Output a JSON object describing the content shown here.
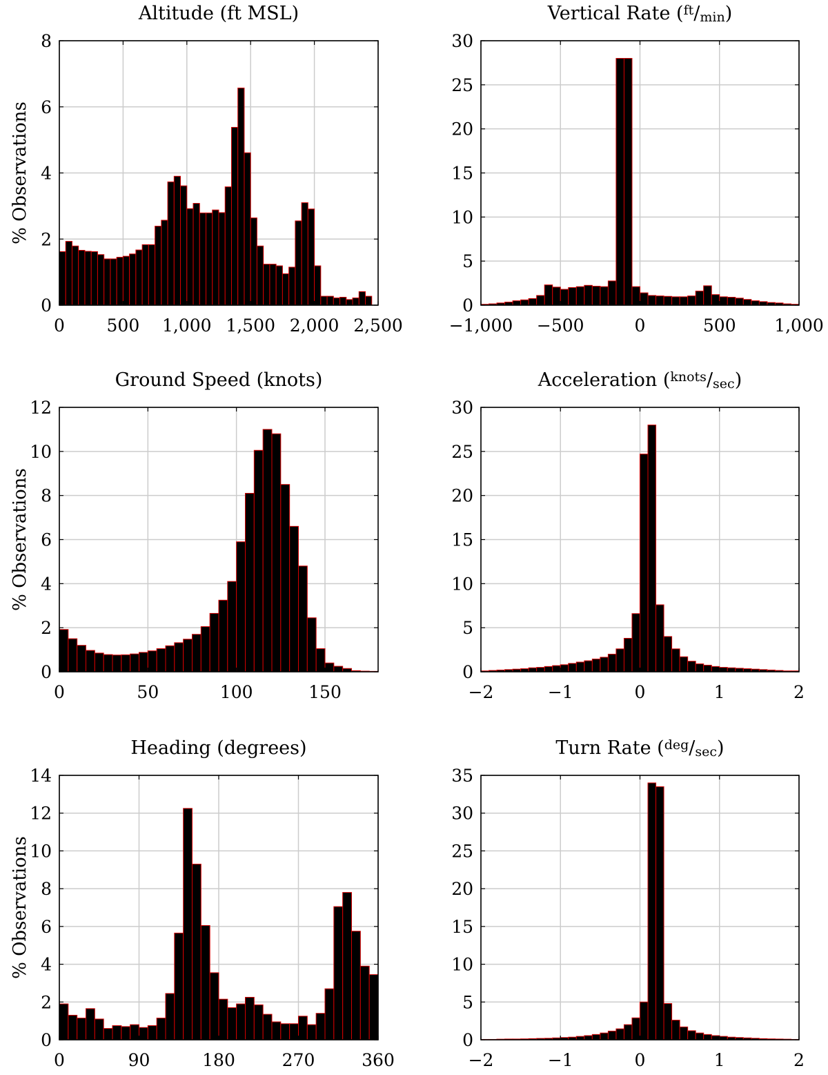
{
  "figure": {
    "ylabel": "% Observations",
    "bar_color": "#000000",
    "edge_color": "#d40000",
    "grid_color": "#cccccc"
  },
  "chart_data": [
    {
      "id": "altitude",
      "type": "bar",
      "title": "Altitude (ft MSL)",
      "ylabel": "% Observations",
      "xlim": [
        0,
        2500
      ],
      "ylim": [
        0,
        8
      ],
      "xticks": [
        0,
        500,
        1000,
        1500,
        2000,
        2500
      ],
      "xtick_labels": [
        "0",
        "500",
        "1,000",
        "1,500",
        "2,000",
        "2,500"
      ],
      "yticks": [
        0,
        2,
        4,
        6,
        8
      ],
      "ytick_labels": [
        "0",
        "2",
        "4",
        "6",
        "8"
      ],
      "bin_start": 0,
      "bin_width": 50,
      "values": [
        1.62,
        1.93,
        1.79,
        1.66,
        1.63,
        1.62,
        1.53,
        1.4,
        1.4,
        1.45,
        1.48,
        1.55,
        1.67,
        1.83,
        1.83,
        2.39,
        2.57,
        3.73,
        3.9,
        3.61,
        2.92,
        3.08,
        2.79,
        2.79,
        2.88,
        2.8,
        3.58,
        5.38,
        6.57,
        4.61,
        2.64,
        1.79,
        1.24,
        1.24,
        1.19,
        0.95,
        1.15,
        2.55,
        3.1,
        2.91,
        1.19,
        0.27,
        0.27,
        0.22,
        0.24,
        0.17,
        0.22,
        0.41,
        0.27
      ]
    },
    {
      "id": "vertical-rate",
      "type": "bar",
      "title": "Vertical Rate (ft/min)",
      "title_main": "Vertical Rate (",
      "title_num": "ft",
      "title_den": "min",
      "title_close": ")",
      "xlim": [
        -1000,
        1000
      ],
      "ylim": [
        0,
        30
      ],
      "xticks": [
        -1000,
        -500,
        0,
        500,
        1000
      ],
      "xtick_labels": [
        "−1,000",
        "−500",
        "0",
        "500",
        "1,000"
      ],
      "yticks": [
        0,
        5,
        10,
        15,
        20,
        25,
        30
      ],
      "ytick_labels": [
        "0",
        "5",
        "10",
        "15",
        "20",
        "25",
        "30"
      ],
      "bin_start": -1000,
      "bin_width": 50,
      "values": [
        0.1,
        0.15,
        0.25,
        0.35,
        0.5,
        0.6,
        0.75,
        1.1,
        2.3,
        2.05,
        1.8,
        2.0,
        2.1,
        2.25,
        2.15,
        2.1,
        2.75,
        28.0,
        28.0,
        2.1,
        1.4,
        1.1,
        1.05,
        1.0,
        0.95,
        0.95,
        1.05,
        1.6,
        2.2,
        1.2,
        0.95,
        0.9,
        0.8,
        0.65,
        0.5,
        0.4,
        0.3,
        0.25,
        0.15,
        0.1
      ]
    },
    {
      "id": "ground-speed",
      "type": "bar",
      "title": "Ground Speed (knots)",
      "ylabel": "% Observations",
      "xlim": [
        0,
        180
      ],
      "ylim": [
        0,
        12
      ],
      "xticks": [
        0,
        50,
        100,
        150
      ],
      "xtick_labels": [
        "0",
        "50",
        "100",
        "150"
      ],
      "yticks": [
        0,
        2,
        4,
        6,
        8,
        10,
        12
      ],
      "ytick_labels": [
        "0",
        "2",
        "4",
        "6",
        "8",
        "10",
        "12"
      ],
      "bin_start": 0,
      "bin_width": 5,
      "values": [
        1.92,
        1.5,
        1.2,
        0.97,
        0.85,
        0.78,
        0.76,
        0.77,
        0.81,
        0.88,
        0.95,
        1.05,
        1.18,
        1.32,
        1.48,
        1.7,
        2.05,
        2.65,
        3.25,
        4.1,
        5.9,
        8.1,
        10.05,
        11.0,
        10.8,
        8.5,
        6.6,
        4.8,
        2.45,
        1.05,
        0.4,
        0.25,
        0.15,
        0.05,
        0.03,
        0.02
      ]
    },
    {
      "id": "acceleration",
      "type": "bar",
      "title": "Acceleration (knots/sec)",
      "title_main": "Acceleration (",
      "title_num": "knots",
      "title_den": "sec",
      "title_close": ")",
      "xlim": [
        -2,
        2
      ],
      "ylim": [
        0,
        30
      ],
      "xticks": [
        -2,
        -1,
        0,
        1,
        2
      ],
      "xtick_labels": [
        "−2",
        "−1",
        "0",
        "1",
        "2"
      ],
      "yticks": [
        0,
        5,
        10,
        15,
        20,
        25,
        30
      ],
      "ytick_labels": [
        "0",
        "5",
        "10",
        "15",
        "20",
        "25",
        "30"
      ],
      "bin_start": -2,
      "bin_width": 0.1,
      "values": [
        0.1,
        0.15,
        0.2,
        0.25,
        0.3,
        0.35,
        0.45,
        0.5,
        0.6,
        0.7,
        0.8,
        0.95,
        1.1,
        1.25,
        1.45,
        1.65,
        2.0,
        2.6,
        3.8,
        6.6,
        24.7,
        28.0,
        7.6,
        4.0,
        2.6,
        1.7,
        1.2,
        0.9,
        0.75,
        0.6,
        0.5,
        0.45,
        0.4,
        0.35,
        0.3,
        0.25,
        0.2,
        0.15,
        0.1,
        0.1
      ]
    },
    {
      "id": "heading",
      "type": "bar",
      "title": "Heading (degrees)",
      "ylabel": "% Observations",
      "xlim": [
        0,
        360
      ],
      "ylim": [
        0,
        14
      ],
      "xticks": [
        0,
        90,
        180,
        270,
        360
      ],
      "xtick_labels": [
        "0",
        "90",
        "180",
        "270",
        "360"
      ],
      "yticks": [
        0,
        2,
        4,
        6,
        8,
        10,
        12,
        14
      ],
      "ytick_labels": [
        "0",
        "2",
        "4",
        "6",
        "8",
        "10",
        "12",
        "14"
      ],
      "bin_start": 0,
      "bin_width": 10,
      "values": [
        1.9,
        1.3,
        1.15,
        1.65,
        1.1,
        0.6,
        0.75,
        0.7,
        0.8,
        0.65,
        0.75,
        1.15,
        2.45,
        5.65,
        12.25,
        9.3,
        6.05,
        3.55,
        2.15,
        1.7,
        1.9,
        2.25,
        1.85,
        1.35,
        0.95,
        0.85,
        0.85,
        1.25,
        0.8,
        1.4,
        2.7,
        7.05,
        7.8,
        5.75,
        3.9,
        3.45
      ]
    },
    {
      "id": "turn-rate",
      "type": "bar",
      "title": "Turn Rate (deg/sec)",
      "title_main": "Turn Rate (",
      "title_num": "deg",
      "title_den": "sec",
      "title_close": ")",
      "xlim": [
        -2,
        2
      ],
      "ylim": [
        0,
        35
      ],
      "xticks": [
        -2,
        -1,
        0,
        1,
        2
      ],
      "xtick_labels": [
        "−2",
        "−1",
        "0",
        "1",
        "2"
      ],
      "yticks": [
        0,
        5,
        10,
        15,
        20,
        25,
        30,
        35
      ],
      "ytick_labels": [
        "0",
        "5",
        "10",
        "15",
        "20",
        "25",
        "30",
        "35"
      ],
      "bin_start": -2,
      "bin_width": 0.1,
      "values": [
        0.05,
        0.05,
        0.08,
        0.1,
        0.1,
        0.12,
        0.15,
        0.18,
        0.2,
        0.25,
        0.3,
        0.35,
        0.45,
        0.55,
        0.7,
        0.9,
        1.15,
        1.45,
        2.0,
        2.9,
        5.0,
        34.0,
        33.5,
        4.8,
        2.6,
        1.7,
        1.2,
        0.9,
        0.7,
        0.55,
        0.45,
        0.35,
        0.3,
        0.25,
        0.2,
        0.15,
        0.12,
        0.1,
        0.08,
        0.05
      ]
    }
  ]
}
